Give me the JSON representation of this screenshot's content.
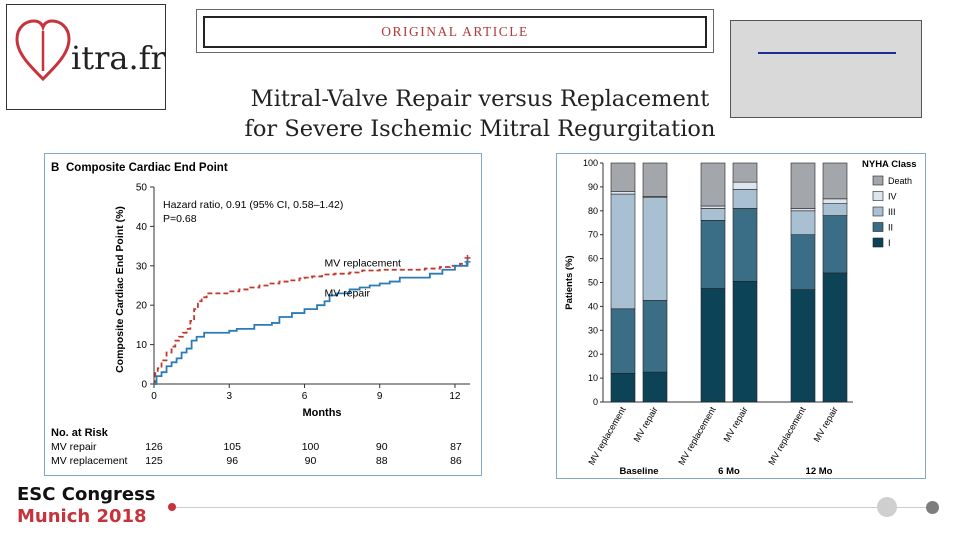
{
  "logo": {
    "text": "itra.fr",
    "brand_color": "#c8323c"
  },
  "header": {
    "article_label": "ORIGINAL ARTICLE"
  },
  "title": {
    "line1": "Mitral-Valve Repair versus Replacement",
    "line2": "for Severe Ischemic Mitral Regurgitation"
  },
  "panel_b": {
    "letter": "B",
    "heading": "Composite Cardiac End Point",
    "annotation_line1": "Hazard ratio, 0.91 (95% CI, 0.58–1.42)",
    "annotation_line2": "P=0.68",
    "risk_table": {
      "heading": "No. at Risk",
      "rows": [
        {
          "label": "MV repair",
          "values": [
            "126",
            "105",
            "100",
            "90",
            "87"
          ]
        },
        {
          "label": "MV replacement",
          "values": [
            "125",
            "96",
            "90",
            "88",
            "86"
          ]
        }
      ]
    }
  },
  "footer": {
    "line1": "ESC Congress",
    "line2": "Munich 2018"
  },
  "chart_data": [
    {
      "type": "line",
      "title": "Composite Cardiac End Point",
      "xlabel": "Months",
      "ylabel": "Composite Cardiac End Point (%)",
      "xlim": [
        0,
        12.6
      ],
      "ylim": [
        0,
        50
      ],
      "xticks": [
        0,
        3,
        6,
        9,
        12
      ],
      "yticks": [
        0,
        10,
        20,
        30,
        40,
        50
      ],
      "series": [
        {
          "name": "MV replacement",
          "color": "#c0392b",
          "dashed": true,
          "step": true,
          "x": [
            0,
            0.05,
            0.15,
            0.3,
            0.5,
            0.7,
            0.85,
            1.0,
            1.15,
            1.3,
            1.45,
            1.6,
            1.75,
            1.9,
            2.1,
            2.5,
            3.0,
            3.4,
            3.8,
            4.2,
            4.6,
            5.0,
            5.4,
            5.8,
            6.0,
            6.3,
            6.7,
            7.2,
            7.8,
            8.3,
            9.0,
            10.0,
            10.8,
            11.4,
            11.8,
            12.2,
            12.5
          ],
          "y": [
            0,
            3,
            4,
            6,
            8,
            9.5,
            11,
            12,
            13,
            14,
            16,
            19,
            21,
            22,
            23,
            23,
            23.5,
            24,
            24.5,
            25,
            25.5,
            26,
            26.3,
            26.8,
            27,
            27.3,
            27.8,
            28,
            28.3,
            28.8,
            29,
            29,
            29.3,
            29.7,
            30,
            30.5,
            32
          ]
        },
        {
          "name": "MV repair",
          "color": "#2b7bb9",
          "dashed": false,
          "step": true,
          "x": [
            0,
            0.1,
            0.3,
            0.5,
            0.7,
            0.9,
            1.1,
            1.3,
            1.5,
            1.7,
            2.0,
            2.5,
            3.0,
            3.3,
            4.0,
            4.5,
            4.7,
            5.0,
            5.5,
            6.0,
            6.5,
            6.8,
            7.0,
            7.3,
            7.8,
            8.2,
            8.6,
            9.0,
            9.4,
            9.8,
            10.3,
            11.0,
            11.5,
            12.0,
            12.5
          ],
          "y": [
            0,
            2,
            3,
            4.5,
            5.5,
            6.5,
            8,
            9,
            11,
            12,
            13,
            13,
            13.5,
            14,
            15,
            15,
            15.5,
            17,
            18,
            19,
            20,
            21,
            22.5,
            23,
            24,
            24.5,
            25,
            25.5,
            26,
            27,
            27,
            28,
            29,
            30,
            31
          ]
        }
      ]
    },
    {
      "type": "bar",
      "stacked": true,
      "title": "",
      "ylabel": "Patients (%)",
      "ylim": [
        0,
        100
      ],
      "yticks": [
        0,
        10,
        20,
        30,
        40,
        50,
        60,
        70,
        80,
        90,
        100
      ],
      "groups": [
        "Baseline",
        "6 Mo",
        "12 Mo"
      ],
      "categories": [
        "MV replacement",
        "MV repair",
        "MV replacement",
        "MV repair",
        "MV replacement",
        "MV repair"
      ],
      "legend_title": "NYHA Class",
      "legend_position": "top-right",
      "series": [
        {
          "name": "I",
          "color": "#0d4356",
          "values": [
            12,
            12.5,
            47.5,
            50.5,
            47,
            54
          ]
        },
        {
          "name": "II",
          "color": "#3a6e87",
          "values": [
            27,
            30,
            28.5,
            30.5,
            23,
            24
          ]
        },
        {
          "name": "III",
          "color": "#a9c0d3",
          "values": [
            48,
            43,
            5,
            8,
            10,
            5
          ]
        },
        {
          "name": "IV",
          "color": "#dde6ee",
          "values": [
            1,
            0.5,
            1,
            3,
            1,
            2
          ]
        },
        {
          "name": "Death",
          "color": "#a3a6ab",
          "values": [
            12,
            14,
            18,
            8,
            19,
            15
          ]
        }
      ]
    }
  ]
}
